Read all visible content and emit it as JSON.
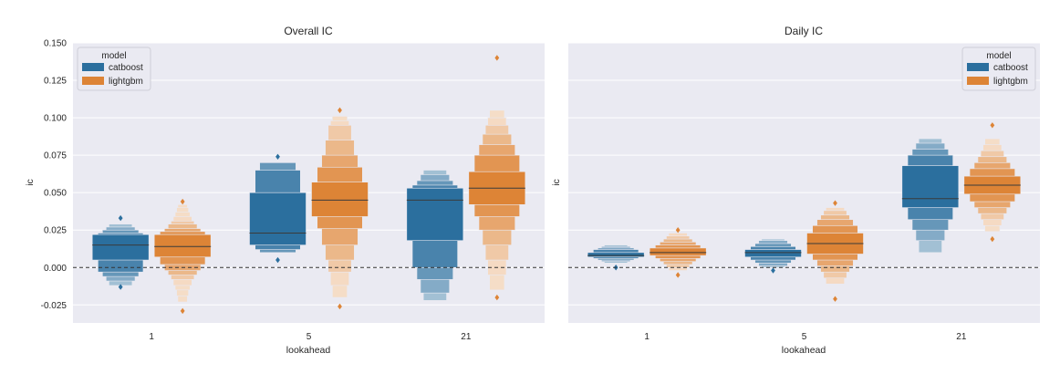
{
  "chart_data": [
    {
      "type": "boxen",
      "title": "Overall IC",
      "xlabel": "lookahead",
      "ylabel": "ic",
      "categories": [
        "1",
        "5",
        "21"
      ],
      "ylim": [
        -0.037,
        0.15
      ],
      "yticks": [
        "-0.025",
        "0.000",
        "0.025",
        "0.050",
        "0.075",
        "0.100",
        "0.125",
        "0.150"
      ],
      "grid": true,
      "reference_line": 0,
      "legend": {
        "title": "model",
        "placement": "top-left"
      },
      "series": [
        {
          "name": "catboost",
          "color": "#2b6f9e",
          "boxes": [
            {
              "median": 0.015,
              "levels": [
                [
                  0.005,
                  0.022
                ],
                [
                  -0.003,
                  0.023
                ],
                [
                  -0.006,
                  0.025
                ],
                [
                  -0.009,
                  0.027
                ],
                [
                  -0.012,
                  0.029
                ]
              ],
              "outliers": [
                0.033,
                -0.013
              ]
            },
            {
              "median": 0.023,
              "levels": [
                [
                  0.015,
                  0.05
                ],
                [
                  0.012,
                  0.065
                ],
                [
                  0.01,
                  0.07
                ]
              ],
              "outliers": [
                0.074,
                0.005
              ]
            },
            {
              "median": 0.045,
              "levels": [
                [
                  0.018,
                  0.053
                ],
                [
                  0.0,
                  0.055
                ],
                [
                  -0.008,
                  0.058
                ],
                [
                  -0.017,
                  0.062
                ],
                [
                  -0.022,
                  0.065
                ]
              ],
              "outliers": []
            }
          ]
        },
        {
          "name": "lightgbm",
          "color": "#dd8436",
          "boxes": [
            {
              "median": 0.014,
              "levels": [
                [
                  0.007,
                  0.022
                ],
                [
                  0.002,
                  0.024
                ],
                [
                  -0.002,
                  0.026
                ],
                [
                  -0.005,
                  0.029
                ],
                [
                  -0.008,
                  0.031
                ],
                [
                  -0.012,
                  0.034
                ],
                [
                  -0.015,
                  0.037
                ],
                [
                  -0.019,
                  0.04
                ],
                [
                  -0.023,
                  0.042
                ]
              ],
              "outliers": [
                0.044,
                -0.029
              ]
            },
            {
              "median": 0.045,
              "levels": [
                [
                  0.034,
                  0.057
                ],
                [
                  0.026,
                  0.067
                ],
                [
                  0.015,
                  0.075
                ],
                [
                  0.005,
                  0.085
                ],
                [
                  -0.003,
                  0.095
                ],
                [
                  -0.012,
                  0.098
                ],
                [
                  -0.02,
                  0.101
                ]
              ],
              "outliers": [
                0.105,
                -0.026
              ]
            },
            {
              "median": 0.053,
              "levels": [
                [
                  0.042,
                  0.064
                ],
                [
                  0.034,
                  0.075
                ],
                [
                  0.025,
                  0.082
                ],
                [
                  0.015,
                  0.089
                ],
                [
                  0.005,
                  0.095
                ],
                [
                  -0.005,
                  0.1
                ],
                [
                  -0.015,
                  0.105
                ]
              ],
              "outliers": [
                0.14,
                -0.02
              ]
            }
          ]
        }
      ]
    },
    {
      "type": "boxen",
      "title": "Daily IC",
      "xlabel": "lookahead",
      "ylabel": "ic",
      "categories": [
        "1",
        "5",
        "21"
      ],
      "ylim": [
        -0.037,
        0.15
      ],
      "yticks": [],
      "grid": true,
      "reference_line": 0,
      "legend": {
        "title": "model",
        "placement": "top-right"
      },
      "series": [
        {
          "name": "catboost",
          "color": "#2b6f9e",
          "boxes": [
            {
              "median": 0.008,
              "levels": [
                [
                  0.007,
                  0.01
                ],
                [
                  0.006,
                  0.012
                ],
                [
                  0.005,
                  0.013
                ],
                [
                  0.004,
                  0.014
                ],
                [
                  0.003,
                  0.015
                ]
              ],
              "outliers": [
                0.0
              ]
            },
            {
              "median": 0.01,
              "levels": [
                [
                  0.007,
                  0.012
                ],
                [
                  0.005,
                  0.014
                ],
                [
                  0.003,
                  0.016
                ],
                [
                  0.001,
                  0.018
                ],
                [
                  0.0,
                  0.019
                ]
              ],
              "outliers": [
                -0.002
              ]
            },
            {
              "median": 0.046,
              "levels": [
                [
                  0.04,
                  0.068
                ],
                [
                  0.032,
                  0.075
                ],
                [
                  0.025,
                  0.079
                ],
                [
                  0.018,
                  0.083
                ],
                [
                  0.01,
                  0.086
                ]
              ],
              "outliers": []
            }
          ]
        },
        {
          "name": "lightgbm",
          "color": "#dd8436",
          "boxes": [
            {
              "median": 0.01,
              "levels": [
                [
                  0.008,
                  0.013
                ],
                [
                  0.006,
                  0.015
                ],
                [
                  0.004,
                  0.017
                ],
                [
                  0.002,
                  0.019
                ],
                [
                  0.0,
                  0.021
                ],
                [
                  -0.002,
                  0.023
                ]
              ],
              "outliers": [
                0.025,
                -0.005
              ]
            },
            {
              "median": 0.016,
              "levels": [
                [
                  0.009,
                  0.023
                ],
                [
                  0.005,
                  0.028
                ],
                [
                  0.001,
                  0.032
                ],
                [
                  -0.003,
                  0.035
                ],
                [
                  -0.007,
                  0.038
                ],
                [
                  -0.011,
                  0.04
                ]
              ],
              "outliers": [
                0.043,
                -0.021
              ]
            },
            {
              "median": 0.055,
              "levels": [
                [
                  0.049,
                  0.061
                ],
                [
                  0.044,
                  0.066
                ],
                [
                  0.04,
                  0.07
                ],
                [
                  0.036,
                  0.074
                ],
                [
                  0.032,
                  0.078
                ],
                [
                  0.028,
                  0.082
                ],
                [
                  0.024,
                  0.086
                ]
              ],
              "outliers": [
                0.095,
                0.019
              ]
            }
          ]
        }
      ]
    }
  ]
}
